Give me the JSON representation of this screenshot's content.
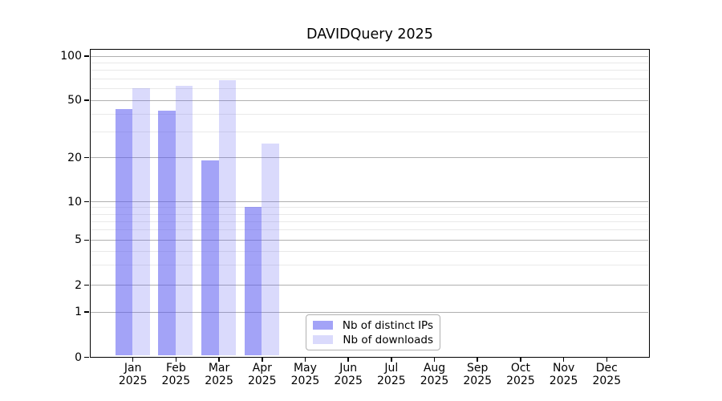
{
  "title": "DAVIDQuery 2025",
  "chart_data": {
    "type": "bar",
    "title": "DAVIDQuery 2025",
    "categories": [
      "Jan",
      "Feb",
      "Mar",
      "Apr",
      "May",
      "Jun",
      "Jul",
      "Aug",
      "Sep",
      "Oct",
      "Nov",
      "Dec"
    ],
    "year_label": "2025",
    "series": [
      {
        "name": "Nb of distinct IPs",
        "color": "rgba(88,88,240,0.55)",
        "color_on_white": "#a3a3f7",
        "values": [
          43,
          42,
          19,
          9,
          null,
          null,
          null,
          null,
          null,
          null,
          null,
          null
        ]
      },
      {
        "name": "Nb of downloads",
        "color": "rgba(88,88,240,0.22)",
        "color_on_white": "#dadafc",
        "values": [
          60,
          62,
          68,
          25,
          null,
          null,
          null,
          null,
          null,
          null,
          null,
          null
        ]
      }
    ],
    "y_ticks": [
      0,
      1,
      2,
      5,
      10,
      20,
      50,
      100
    ],
    "y_minor_ticks": [
      3,
      4,
      6,
      7,
      8,
      9,
      30,
      40,
      60,
      70,
      80,
      90
    ],
    "y_scale": "symlog",
    "ylim": [
      0,
      112
    ],
    "xlabel": "",
    "ylabel": "",
    "grid": true,
    "legend_position": "lower-center-inside",
    "colors": {
      "major_grid": "#b0b0b0",
      "minor_grid": "#e9e9e9",
      "axis": "#000000"
    }
  }
}
